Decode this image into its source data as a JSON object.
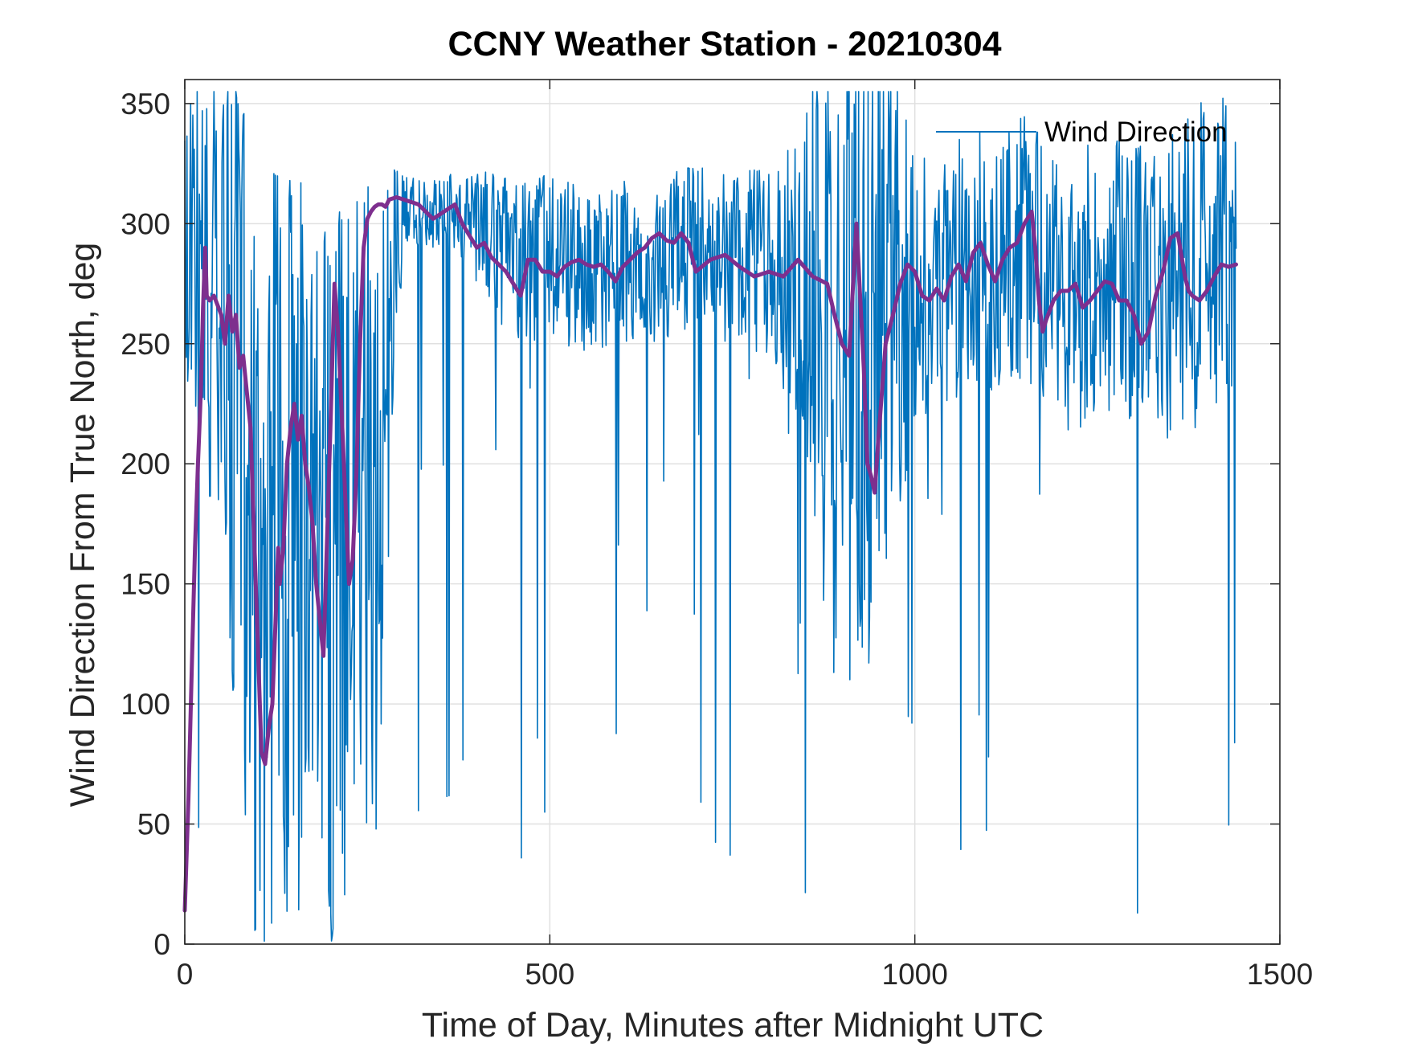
{
  "chart_data": {
    "type": "line",
    "title": "CCNY Weather Station - 20210304",
    "xlabel": "Time of Day, Minutes after Midnight UTC",
    "ylabel": "Wind Direction From True North, deg",
    "xlim": [
      0,
      1500
    ],
    "ylim": [
      0,
      360
    ],
    "xticks": [
      0,
      500,
      1000,
      1500
    ],
    "yticks": [
      0,
      50,
      100,
      150,
      200,
      250,
      300,
      350
    ],
    "grid": true,
    "legend": {
      "placement": "top-right",
      "entries": [
        "Wind Direction"
      ]
    },
    "colors": {
      "raw": "#0072BD",
      "smoothed": "#7E2F8E",
      "axes": "#262626",
      "grid": "#e0e0e0"
    },
    "series": [
      {
        "name": "Wind Direction",
        "style": "thin-noisy",
        "noise_seed": 20210304,
        "x": [
          0,
          20,
          60,
          100,
          140,
          180,
          220,
          260,
          300,
          350,
          400,
          450,
          500,
          550,
          600,
          650,
          700,
          750,
          800,
          850,
          880,
          920,
          960,
          1000,
          1050,
          1100,
          1150,
          1200,
          1250,
          1300,
          1350,
          1400,
          1440
        ],
        "center": [
          300,
          290,
          260,
          150,
          170,
          150,
          160,
          180,
          305,
          305,
          300,
          285,
          285,
          280,
          285,
          285,
          290,
          285,
          285,
          280,
          260,
          250,
          260,
          275,
          280,
          285,
          290,
          270,
          275,
          270,
          275,
          285,
          290
        ],
        "spread": [
          60,
          80,
          140,
          160,
          160,
          160,
          160,
          150,
          15,
          15,
          25,
          35,
          35,
          35,
          35,
          35,
          35,
          35,
          40,
          70,
          150,
          150,
          120,
          60,
          55,
          55,
          55,
          60,
          60,
          65,
          65,
          70,
          60
        ]
      },
      {
        "name": "",
        "style": "smoothed",
        "x": [
          0,
          5,
          10,
          14,
          18,
          22,
          25,
          28,
          30,
          34,
          40,
          50,
          55,
          60,
          65,
          70,
          75,
          80,
          85,
          90,
          95,
          100,
          105,
          110,
          115,
          120,
          125,
          128,
          130,
          135,
          140,
          145,
          150,
          155,
          160,
          165,
          170,
          175,
          180,
          185,
          190,
          195,
          200,
          205,
          210,
          215,
          220,
          225,
          230,
          235,
          240,
          245,
          250,
          255,
          260,
          265,
          270,
          275,
          280,
          290,
          300,
          320,
          340,
          360,
          370,
          380,
          390,
          400,
          410,
          420,
          430,
          440,
          450,
          460,
          470,
          480,
          490,
          500,
          510,
          520,
          530,
          540,
          550,
          560,
          570,
          580,
          590,
          600,
          610,
          620,
          630,
          640,
          650,
          660,
          670,
          680,
          690,
          700,
          720,
          740,
          760,
          780,
          800,
          820,
          840,
          860,
          880,
          890,
          900,
          910,
          920,
          930,
          935,
          940,
          945,
          950,
          960,
          970,
          980,
          990,
          1000,
          1010,
          1020,
          1030,
          1040,
          1050,
          1060,
          1070,
          1080,
          1090,
          1100,
          1110,
          1120,
          1130,
          1140,
          1150,
          1160,
          1165,
          1170,
          1175,
          1180,
          1190,
          1200,
          1210,
          1220,
          1230,
          1240,
          1250,
          1260,
          1270,
          1280,
          1290,
          1300,
          1310,
          1320,
          1330,
          1340,
          1350,
          1360,
          1370,
          1375,
          1380,
          1390,
          1400,
          1410,
          1420,
          1430,
          1440
        ],
        "y": [
          14,
          60,
          120,
          165,
          200,
          230,
          265,
          290,
          270,
          268,
          270,
          262,
          250,
          270,
          255,
          262,
          240,
          245,
          230,
          215,
          170,
          125,
          80,
          75,
          90,
          100,
          140,
          165,
          150,
          165,
          200,
          215,
          225,
          210,
          220,
          200,
          190,
          175,
          150,
          135,
          120,
          170,
          220,
          275,
          255,
          220,
          185,
          150,
          160,
          195,
          250,
          290,
          302,
          305,
          307,
          308,
          308,
          307,
          310,
          311,
          310,
          308,
          302,
          306,
          308,
          300,
          295,
          290,
          292,
          286,
          283,
          280,
          275,
          270,
          285,
          285,
          280,
          280,
          278,
          282,
          284,
          285,
          283,
          282,
          283,
          280,
          276,
          282,
          285,
          288,
          290,
          294,
          296,
          293,
          292,
          296,
          292,
          280,
          285,
          287,
          282,
          278,
          280,
          278,
          285,
          278,
          275,
          262,
          250,
          245,
          300,
          240,
          200,
          195,
          188,
          210,
          250,
          262,
          275,
          283,
          280,
          270,
          268,
          273,
          268,
          278,
          283,
          276,
          288,
          292,
          283,
          276,
          285,
          290,
          292,
          300,
          305,
          290,
          268,
          255,
          260,
          268,
          272,
          272,
          275,
          265,
          268,
          272,
          276,
          275,
          268,
          268,
          262,
          250,
          255,
          270,
          280,
          294,
          296,
          278,
          272,
          270,
          268,
          272,
          278,
          283,
          282,
          283
        ]
      }
    ]
  }
}
